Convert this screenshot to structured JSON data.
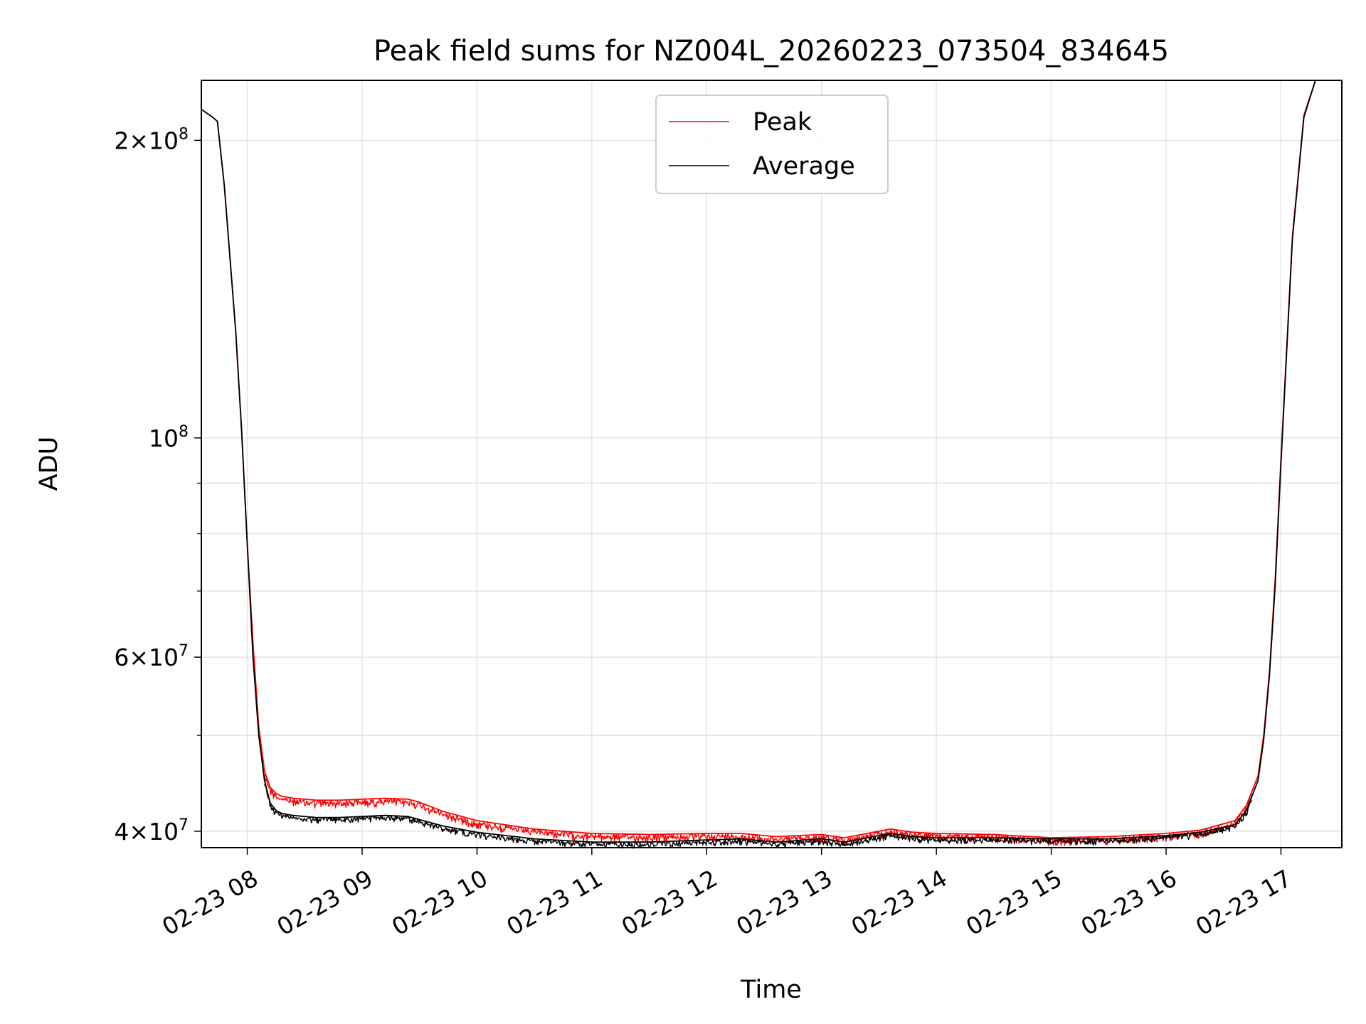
{
  "chart_data": {
    "type": "line",
    "title": "Peak field sums for NZ004L_20260223_073504_834645",
    "xlabel": "Time",
    "ylabel": "ADU",
    "yscale": "log",
    "xlim": [
      7.6,
      17.53
    ],
    "ylim": [
      38500000,
      230000000
    ],
    "grid": true,
    "legend_position": "top-center",
    "x_ticks": [
      {
        "value": 8,
        "label": "02-23 08"
      },
      {
        "value": 9,
        "label": "02-23 09"
      },
      {
        "value": 10,
        "label": "02-23 10"
      },
      {
        "value": 11,
        "label": "02-23 11"
      },
      {
        "value": 12,
        "label": "02-23 12"
      },
      {
        "value": 13,
        "label": "02-23 13"
      },
      {
        "value": 14,
        "label": "02-23 14"
      },
      {
        "value": 15,
        "label": "02-23 15"
      },
      {
        "value": 16,
        "label": "02-23 16"
      },
      {
        "value": 17,
        "label": "02-23 17"
      }
    ],
    "y_major_ticks": [
      {
        "value": 40000000,
        "base": "4",
        "exp": "7"
      },
      {
        "value": 60000000,
        "base": "6",
        "exp": "7"
      },
      {
        "value": 100000000,
        "base": "",
        "exp": "8"
      },
      {
        "value": 200000000,
        "base": "2",
        "exp": "8"
      }
    ],
    "y_minor_ticks": [
      50000000,
      70000000,
      80000000,
      90000000,
      300000000
    ],
    "series": [
      {
        "name": "Peak",
        "color": "#ff0000",
        "x": [
          7.6,
          7.7,
          7.74,
          7.8,
          7.9,
          7.95,
          8.0,
          8.05,
          8.1,
          8.15,
          8.2,
          8.25,
          8.3,
          8.35,
          8.4,
          8.5,
          8.6,
          8.8,
          9.0,
          9.2,
          9.4,
          9.5,
          9.7,
          10.0,
          10.5,
          11.0,
          11.5,
          12.0,
          12.3,
          12.6,
          13.0,
          13.2,
          13.5,
          13.6,
          13.8,
          14.0,
          14.5,
          15.0,
          15.5,
          16.0,
          16.3,
          16.6,
          16.7,
          16.8,
          16.85,
          16.9,
          16.95,
          17.0,
          17.1,
          17.2,
          17.3,
          17.53
        ],
        "values": [
          215000000,
          211000000,
          209000000,
          180000000,
          128000000,
          102000000,
          78000000,
          62000000,
          51000000,
          46000000,
          44300000,
          43700000,
          43400000,
          43300000,
          43200000,
          43100000,
          43000000,
          43000000,
          43100000,
          43200000,
          43100000,
          42800000,
          41900000,
          41000000,
          40200000,
          39800000,
          39700000,
          39800000,
          39800000,
          39500000,
          39700000,
          39400000,
          40000000,
          40200000,
          39900000,
          39800000,
          39700000,
          39400000,
          39500000,
          39800000,
          40100000,
          41000000,
          42500000,
          45500000,
          50000000,
          58000000,
          72000000,
          95000000,
          160000000,
          212000000,
          230000000,
          230000000
        ]
      },
      {
        "name": "Average",
        "color": "#000000",
        "x": [
          7.6,
          7.7,
          7.74,
          7.8,
          7.9,
          7.95,
          8.0,
          8.05,
          8.1,
          8.15,
          8.2,
          8.25,
          8.3,
          8.35,
          8.4,
          8.5,
          8.6,
          8.8,
          9.0,
          9.2,
          9.4,
          9.5,
          9.7,
          10.0,
          10.5,
          11.0,
          11.5,
          12.0,
          12.3,
          12.6,
          13.0,
          13.2,
          13.5,
          13.6,
          13.8,
          14.0,
          14.5,
          15.0,
          15.5,
          16.0,
          16.3,
          16.6,
          16.7,
          16.8,
          16.85,
          16.9,
          16.95,
          17.0,
          17.1,
          17.2,
          17.3,
          17.53
        ],
        "values": [
          215000000,
          211000000,
          209000000,
          180000000,
          128000000,
          102000000,
          78000000,
          60000000,
          50000000,
          45000000,
          42700000,
          42000000,
          41700000,
          41600000,
          41500000,
          41400000,
          41300000,
          41300000,
          41400000,
          41500000,
          41400000,
          41100000,
          40500000,
          39900000,
          39300000,
          39000000,
          39000000,
          39200000,
          39300000,
          39000000,
          39300000,
          39000000,
          39600000,
          39800000,
          39500000,
          39400000,
          39400000,
          39300000,
          39300000,
          39600000,
          39900000,
          40600000,
          42000000,
          45000000,
          49500000,
          57500000,
          71000000,
          94000000,
          159000000,
          211000000,
          230000000,
          230000000
        ]
      }
    ]
  }
}
